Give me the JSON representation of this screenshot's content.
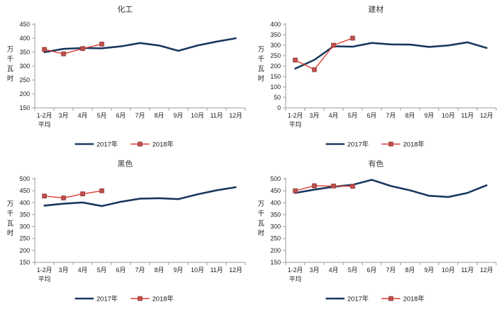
{
  "page": {
    "background": "#ffffff",
    "description_labels": {
      "y_axis_unit": "万千瓦时",
      "series_2017": "2017年",
      "series_2018": "2018年"
    }
  },
  "colors": {
    "series_2017_line": "#17375D",
    "series_2018_line": "#DD3B32",
    "series_2018_marker_fill": "#C0504D",
    "series_2018_marker_stroke": "#8E3834",
    "axis_line": "#9B9B9B",
    "tick_label": "#1A1A1A",
    "title_text": "#333333"
  },
  "chart_data": [
    {
      "type": "line",
      "title": "化工",
      "categories": [
        "1-2月\n平均",
        "3月",
        "4月",
        "5月",
        "6月",
        "7月",
        "8月",
        "9月",
        "10月",
        "11月",
        "12月"
      ],
      "series": [
        {
          "name": "2017年",
          "values": [
            350,
            362,
            365,
            364,
            371,
            383,
            374,
            355,
            374,
            388,
            400
          ]
        },
        {
          "name": "2018年",
          "values": [
            360,
            344,
            363,
            379
          ]
        }
      ],
      "xlabel": "",
      "ylabel": "万千瓦时",
      "ylim": [
        150,
        450
      ],
      "ytick": 50,
      "grid": false,
      "legend_position": "bottom"
    },
    {
      "type": "line",
      "title": "建材",
      "categories": [
        "1-2月\n平均",
        "3月",
        "4月",
        "5月",
        "6月",
        "7月",
        "8月",
        "9月",
        "10月",
        "11月",
        "12月"
      ],
      "series": [
        {
          "name": "2017年",
          "values": [
            188,
            230,
            295,
            293,
            311,
            304,
            303,
            292,
            299,
            314,
            287
          ]
        },
        {
          "name": "2018年",
          "values": [
            229,
            183,
            300,
            334
          ]
        }
      ],
      "xlabel": "",
      "ylabel": "万千瓦时",
      "ylim": [
        0,
        400
      ],
      "ytick": 50,
      "grid": false,
      "legend_position": "bottom"
    },
    {
      "type": "line",
      "title": "黑色",
      "categories": [
        "1-2月\n平均",
        "3月",
        "4月",
        "5月",
        "6月",
        "7月",
        "8月",
        "9月",
        "10月",
        "11月",
        "12月"
      ],
      "series": [
        {
          "name": "2017年",
          "values": [
            388,
            396,
            401,
            386,
            404,
            417,
            419,
            415,
            435,
            452,
            465
          ]
        },
        {
          "name": "2018年",
          "values": [
            428,
            420,
            437,
            450
          ]
        }
      ],
      "xlabel": "",
      "ylabel": "万千瓦时",
      "ylim": [
        150,
        500
      ],
      "ytick": 50,
      "grid": false,
      "legend_position": "bottom"
    },
    {
      "type": "line",
      "title": "有色",
      "categories": [
        "1-2月\n平均",
        "3月",
        "4月",
        "5月",
        "6月",
        "7月",
        "8月",
        "9月",
        "10月",
        "11月",
        "12月"
      ],
      "series": [
        {
          "name": "2017年",
          "values": [
            441,
            455,
            467,
            475,
            496,
            470,
            452,
            429,
            424,
            441,
            473
          ]
        },
        {
          "name": "2018年",
          "values": [
            450,
            471,
            470,
            469
          ]
        }
      ],
      "xlabel": "",
      "ylabel": "万千瓦时",
      "ylim": [
        150,
        500
      ],
      "ytick": 50,
      "grid": false,
      "legend_position": "bottom"
    }
  ]
}
